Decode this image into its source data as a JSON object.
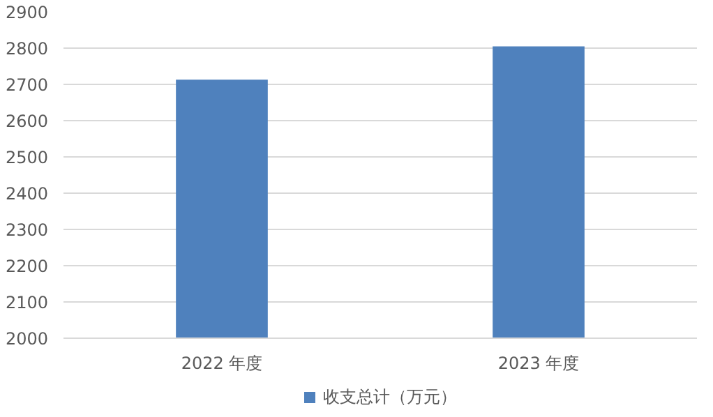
{
  "chart_data": {
    "type": "bar",
    "categories": [
      "2022 年度",
      "2023 年度"
    ],
    "series": [
      {
        "name": "收支总计（万元）",
        "color": "#4f81bd",
        "values": [
          2713,
          2805
        ]
      }
    ],
    "ylim": [
      2000,
      2900
    ],
    "yticks": [
      2000,
      2100,
      2200,
      2300,
      2400,
      2500,
      2600,
      2700,
      2800,
      2900
    ],
    "grid": "y",
    "legend": "bottom"
  }
}
